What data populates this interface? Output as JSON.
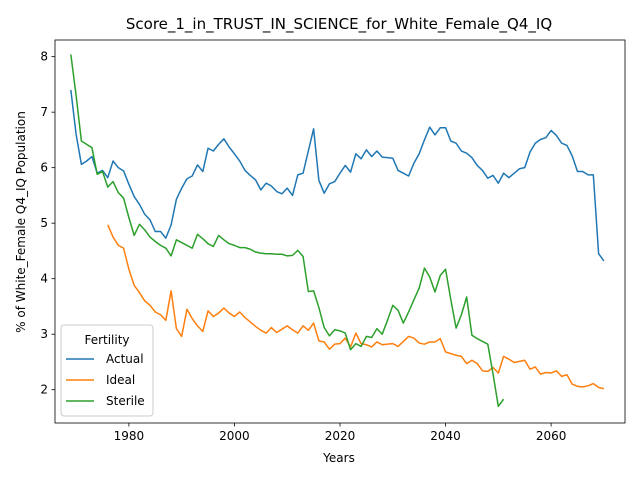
{
  "chart_data": {
    "type": "line",
    "title": "Score_1_in_TRUST_IN_SCIENCE_for_White_Female_Q4_IQ",
    "xlabel": "Years",
    "ylabel": "% of White_Female Q4_IQ Population",
    "xlim": [
      1966,
      2074
    ],
    "ylim": [
      1.4,
      8.3
    ],
    "xticks": [
      1980,
      2000,
      2020,
      2040,
      2060
    ],
    "yticks": [
      2,
      3,
      4,
      5,
      6,
      7,
      8
    ],
    "grid": false,
    "legend": {
      "title": "Fertility",
      "placement": "lower-left"
    },
    "series": [
      {
        "name": "Actual",
        "color": "#1f77b4",
        "points": [
          [
            1969,
            7.4
          ],
          [
            1970,
            6.6
          ],
          [
            1971,
            6.06
          ],
          [
            1972,
            6.12
          ],
          [
            1973,
            6.2
          ],
          [
            1974,
            5.9
          ],
          [
            1975,
            5.95
          ],
          [
            1976,
            5.82
          ],
          [
            1977,
            6.12
          ],
          [
            1978,
            6.0
          ],
          [
            1979,
            5.94
          ],
          [
            1980,
            5.7
          ],
          [
            1981,
            5.48
          ],
          [
            1982,
            5.34
          ],
          [
            1983,
            5.16
          ],
          [
            1984,
            5.06
          ],
          [
            1985,
            4.85
          ],
          [
            1986,
            4.85
          ],
          [
            1987,
            4.73
          ],
          [
            1988,
            4.97
          ],
          [
            1989,
            5.43
          ],
          [
            1990,
            5.63
          ],
          [
            1991,
            5.8
          ],
          [
            1992,
            5.85
          ],
          [
            1993,
            6.05
          ],
          [
            1994,
            5.93
          ],
          [
            1995,
            6.35
          ],
          [
            1996,
            6.3
          ],
          [
            1997,
            6.42
          ],
          [
            1998,
            6.52
          ],
          [
            1999,
            6.37
          ],
          [
            2000,
            6.25
          ],
          [
            2001,
            6.12
          ],
          [
            2002,
            5.95
          ],
          [
            2003,
            5.86
          ],
          [
            2004,
            5.78
          ],
          [
            2005,
            5.6
          ],
          [
            2006,
            5.72
          ],
          [
            2007,
            5.67
          ],
          [
            2008,
            5.57
          ],
          [
            2009,
            5.53
          ],
          [
            2010,
            5.63
          ],
          [
            2011,
            5.5
          ],
          [
            2012,
            5.87
          ],
          [
            2013,
            5.9
          ],
          [
            2014,
            6.3
          ],
          [
            2015,
            6.7
          ],
          [
            2016,
            5.77
          ],
          [
            2017,
            5.54
          ],
          [
            2018,
            5.71
          ],
          [
            2019,
            5.75
          ],
          [
            2020,
            5.9
          ],
          [
            2021,
            6.04
          ],
          [
            2022,
            5.92
          ],
          [
            2023,
            6.25
          ],
          [
            2024,
            6.16
          ],
          [
            2025,
            6.32
          ],
          [
            2026,
            6.2
          ],
          [
            2027,
            6.3
          ],
          [
            2028,
            6.19
          ],
          [
            2029,
            6.18
          ],
          [
            2030,
            6.17
          ],
          [
            2031,
            5.95
          ],
          [
            2032,
            5.9
          ],
          [
            2033,
            5.85
          ],
          [
            2034,
            6.08
          ],
          [
            2035,
            6.25
          ],
          [
            2036,
            6.5
          ],
          [
            2037,
            6.73
          ],
          [
            2038,
            6.59
          ],
          [
            2039,
            6.72
          ],
          [
            2040,
            6.72
          ],
          [
            2041,
            6.48
          ],
          [
            2042,
            6.44
          ],
          [
            2043,
            6.3
          ],
          [
            2044,
            6.26
          ],
          [
            2045,
            6.18
          ],
          [
            2046,
            6.04
          ],
          [
            2047,
            5.95
          ],
          [
            2048,
            5.81
          ],
          [
            2049,
            5.86
          ],
          [
            2050,
            5.72
          ],
          [
            2051,
            5.9
          ],
          [
            2052,
            5.82
          ],
          [
            2053,
            5.9
          ],
          [
            2054,
            5.98
          ],
          [
            2055,
            6.0
          ],
          [
            2056,
            6.28
          ],
          [
            2057,
            6.44
          ],
          [
            2058,
            6.51
          ],
          [
            2059,
            6.54
          ],
          [
            2060,
            6.67
          ],
          [
            2061,
            6.58
          ],
          [
            2062,
            6.44
          ],
          [
            2063,
            6.4
          ],
          [
            2064,
            6.21
          ],
          [
            2065,
            5.93
          ],
          [
            2066,
            5.93
          ],
          [
            2067,
            5.87
          ],
          [
            2068,
            5.87
          ],
          [
            2069,
            4.45
          ],
          [
            2070,
            4.32
          ]
        ]
      },
      {
        "name": "Ideal",
        "color": "#ff7f0e",
        "points": [
          [
            1976,
            4.97
          ],
          [
            1977,
            4.75
          ],
          [
            1978,
            4.6
          ],
          [
            1979,
            4.55
          ],
          [
            1980,
            4.17
          ],
          [
            1981,
            3.88
          ],
          [
            1982,
            3.75
          ],
          [
            1983,
            3.6
          ],
          [
            1984,
            3.52
          ],
          [
            1985,
            3.4
          ],
          [
            1986,
            3.35
          ],
          [
            1987,
            3.25
          ],
          [
            1988,
            3.78
          ],
          [
            1989,
            3.1
          ],
          [
            1990,
            2.96
          ],
          [
            1991,
            3.45
          ],
          [
            1992,
            3.28
          ],
          [
            1993,
            3.15
          ],
          [
            1994,
            3.05
          ],
          [
            1995,
            3.42
          ],
          [
            1996,
            3.32
          ],
          [
            1997,
            3.38
          ],
          [
            1998,
            3.47
          ],
          [
            1999,
            3.38
          ],
          [
            2000,
            3.32
          ],
          [
            2001,
            3.4
          ],
          [
            2002,
            3.3
          ],
          [
            2003,
            3.22
          ],
          [
            2004,
            3.14
          ],
          [
            2005,
            3.07
          ],
          [
            2006,
            3.02
          ],
          [
            2007,
            3.12
          ],
          [
            2008,
            3.03
          ],
          [
            2009,
            3.09
          ],
          [
            2010,
            3.15
          ],
          [
            2011,
            3.08
          ],
          [
            2012,
            3.02
          ],
          [
            2013,
            3.15
          ],
          [
            2014,
            3.07
          ],
          [
            2015,
            3.2
          ],
          [
            2016,
            2.88
          ],
          [
            2017,
            2.86
          ],
          [
            2018,
            2.73
          ],
          [
            2019,
            2.82
          ],
          [
            2020,
            2.83
          ],
          [
            2021,
            2.93
          ],
          [
            2022,
            2.77
          ],
          [
            2023,
            3.02
          ],
          [
            2024,
            2.83
          ],
          [
            2025,
            2.81
          ],
          [
            2026,
            2.77
          ],
          [
            2027,
            2.86
          ],
          [
            2028,
            2.81
          ],
          [
            2029,
            2.82
          ],
          [
            2030,
            2.83
          ],
          [
            2031,
            2.78
          ],
          [
            2032,
            2.87
          ],
          [
            2033,
            2.96
          ],
          [
            2034,
            2.93
          ],
          [
            2035,
            2.84
          ],
          [
            2036,
            2.82
          ],
          [
            2037,
            2.86
          ],
          [
            2038,
            2.86
          ],
          [
            2039,
            2.92
          ],
          [
            2040,
            2.68
          ],
          [
            2041,
            2.65
          ],
          [
            2042,
            2.62
          ],
          [
            2043,
            2.6
          ],
          [
            2044,
            2.47
          ],
          [
            2045,
            2.53
          ],
          [
            2046,
            2.47
          ],
          [
            2047,
            2.34
          ],
          [
            2048,
            2.33
          ],
          [
            2049,
            2.4
          ],
          [
            2050,
            2.3
          ],
          [
            2051,
            2.6
          ],
          [
            2052,
            2.55
          ],
          [
            2053,
            2.49
          ],
          [
            2054,
            2.51
          ],
          [
            2055,
            2.53
          ],
          [
            2056,
            2.37
          ],
          [
            2057,
            2.41
          ],
          [
            2058,
            2.28
          ],
          [
            2059,
            2.31
          ],
          [
            2060,
            2.3
          ],
          [
            2061,
            2.34
          ],
          [
            2062,
            2.24
          ],
          [
            2063,
            2.27
          ],
          [
            2064,
            2.1
          ],
          [
            2065,
            2.06
          ],
          [
            2066,
            2.05
          ],
          [
            2067,
            2.07
          ],
          [
            2068,
            2.11
          ],
          [
            2069,
            2.04
          ],
          [
            2070,
            2.02
          ]
        ]
      },
      {
        "name": "Sterile",
        "color": "#2ca02c",
        "points": [
          [
            1969,
            8.04
          ],
          [
            1970,
            7.3
          ],
          [
            1971,
            6.48
          ],
          [
            1972,
            6.42
          ],
          [
            1973,
            6.36
          ],
          [
            1974,
            5.88
          ],
          [
            1975,
            5.93
          ],
          [
            1976,
            5.65
          ],
          [
            1977,
            5.75
          ],
          [
            1978,
            5.55
          ],
          [
            1979,
            5.45
          ],
          [
            1980,
            5.1
          ],
          [
            1981,
            4.78
          ],
          [
            1982,
            4.98
          ],
          [
            1983,
            4.88
          ],
          [
            1984,
            4.75
          ],
          [
            1985,
            4.67
          ],
          [
            1986,
            4.6
          ],
          [
            1987,
            4.55
          ],
          [
            1988,
            4.41
          ],
          [
            1989,
            4.7
          ],
          [
            1990,
            4.65
          ],
          [
            1991,
            4.6
          ],
          [
            1992,
            4.55
          ],
          [
            1993,
            4.8
          ],
          [
            1994,
            4.72
          ],
          [
            1995,
            4.63
          ],
          [
            1996,
            4.58
          ],
          [
            1997,
            4.78
          ],
          [
            1998,
            4.7
          ],
          [
            1999,
            4.63
          ],
          [
            2000,
            4.6
          ],
          [
            2001,
            4.56
          ],
          [
            2002,
            4.56
          ],
          [
            2003,
            4.53
          ],
          [
            2004,
            4.48
          ],
          [
            2005,
            4.46
          ],
          [
            2006,
            4.45
          ],
          [
            2007,
            4.45
          ],
          [
            2008,
            4.44
          ],
          [
            2009,
            4.44
          ],
          [
            2010,
            4.41
          ],
          [
            2011,
            4.42
          ],
          [
            2012,
            4.51
          ],
          [
            2013,
            4.4
          ],
          [
            2014,
            3.77
          ],
          [
            2015,
            3.78
          ],
          [
            2016,
            3.48
          ],
          [
            2017,
            3.12
          ],
          [
            2018,
            2.97
          ],
          [
            2019,
            3.08
          ],
          [
            2020,
            3.06
          ],
          [
            2021,
            3.02
          ],
          [
            2022,
            2.72
          ],
          [
            2023,
            2.83
          ],
          [
            2024,
            2.78
          ],
          [
            2025,
            2.96
          ],
          [
            2026,
            2.94
          ],
          [
            2027,
            3.1
          ],
          [
            2028,
            3.0
          ],
          [
            2029,
            3.25
          ],
          [
            2030,
            3.52
          ],
          [
            2031,
            3.43
          ],
          [
            2032,
            3.2
          ],
          [
            2033,
            3.4
          ],
          [
            2034,
            3.62
          ],
          [
            2035,
            3.83
          ],
          [
            2036,
            4.19
          ],
          [
            2037,
            4.03
          ],
          [
            2038,
            3.76
          ],
          [
            2039,
            4.06
          ],
          [
            2040,
            4.17
          ],
          [
            2041,
            3.62
          ],
          [
            2042,
            3.11
          ],
          [
            2043,
            3.35
          ],
          [
            2044,
            3.67
          ],
          [
            2045,
            2.98
          ],
          [
            2046,
            2.92
          ],
          [
            2047,
            2.87
          ],
          [
            2048,
            2.82
          ],
          [
            2049,
            2.28
          ],
          [
            2050,
            1.7
          ],
          [
            2051,
            1.83
          ]
        ]
      }
    ]
  }
}
